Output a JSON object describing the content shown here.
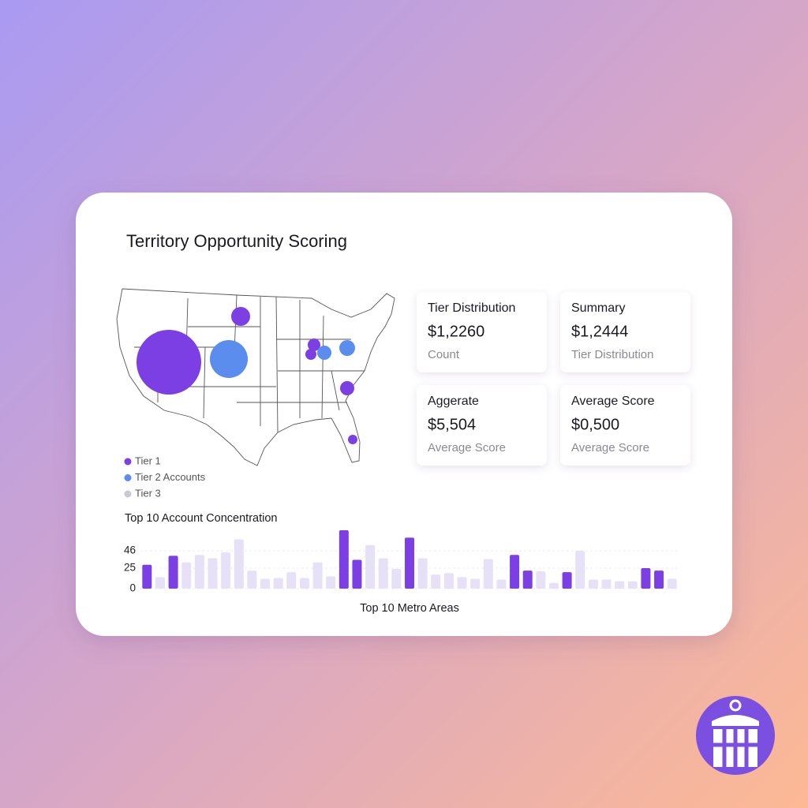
{
  "title": "Territory Opportunity Scoring",
  "stats": [
    {
      "label": "Tier Distribution",
      "value": "$1,2260",
      "caption": "Count"
    },
    {
      "label": "Summary",
      "value": "$1,2444",
      "caption": "Tier Distribution"
    },
    {
      "label": "Aggerate",
      "value": "$5,504",
      "caption": "Average Score"
    },
    {
      "label": "Average Score",
      "value": "$0,500",
      "caption": "Average Score"
    }
  ],
  "map": {
    "legend": [
      "Tier 1",
      "Tier 2 Accounts",
      "Tier 3"
    ],
    "legend_colors": [
      "#7b3fe4",
      "#5b8def",
      "#c9c9cf"
    ]
  },
  "chart_data": {
    "type": "bar",
    "title": "Top 10 Account Concentration",
    "x_label": "Top 10 Metro Areas",
    "categories": [
      null,
      null,
      null,
      null,
      null,
      null,
      null,
      null,
      null,
      null,
      null,
      null,
      null,
      null,
      null,
      null,
      null,
      null,
      null,
      null,
      null,
      null,
      null,
      null,
      null,
      null,
      null,
      null,
      null,
      null,
      null,
      null,
      null,
      null,
      null,
      null,
      null,
      null,
      null,
      null,
      null
    ],
    "values": [
      29,
      14,
      40,
      32,
      41,
      37,
      44,
      60,
      22,
      12,
      13,
      20,
      13,
      32,
      15,
      71,
      35,
      53,
      37,
      24,
      62,
      37,
      17,
      19,
      14,
      12,
      36,
      11,
      41,
      22,
      21,
      7,
      20,
      46,
      11,
      11,
      9,
      9,
      25,
      22,
      12
    ],
    "colors": [
      "#7b3fe4",
      "#e6e1f7",
      "#7b3fe4",
      "#e6e1f7",
      "#e6e1f7",
      "#e6e1f7",
      "#e6e1f7",
      "#e6e1f7",
      "#e6e1f7",
      "#e6e1f7",
      "#e6e1f7",
      "#e6e1f7",
      "#e6e1f7",
      "#e6e1f7",
      "#e6e1f7",
      "#7b3fe4",
      "#7b3fe4",
      "#e6e1f7",
      "#e6e1f7",
      "#e6e1f7",
      "#7b3fe4",
      "#e6e1f7",
      "#e6e1f7",
      "#e6e1f7",
      "#e6e1f7",
      "#e6e1f7",
      "#e6e1f7",
      "#e6e1f7",
      "#7b3fe4",
      "#7b3fe4",
      "#e6e1f7",
      "#e6e1f7",
      "#7b3fe4",
      "#e6e1f7",
      "#e6e1f7",
      "#e6e1f7",
      "#e6e1f7",
      "#e6e1f7",
      "#7b3fe4",
      "#7b3fe4",
      "#e6e1f7"
    ],
    "ylim": [
      0,
      72
    ],
    "yticks": [
      0,
      25,
      46
    ],
    "grid": true
  }
}
